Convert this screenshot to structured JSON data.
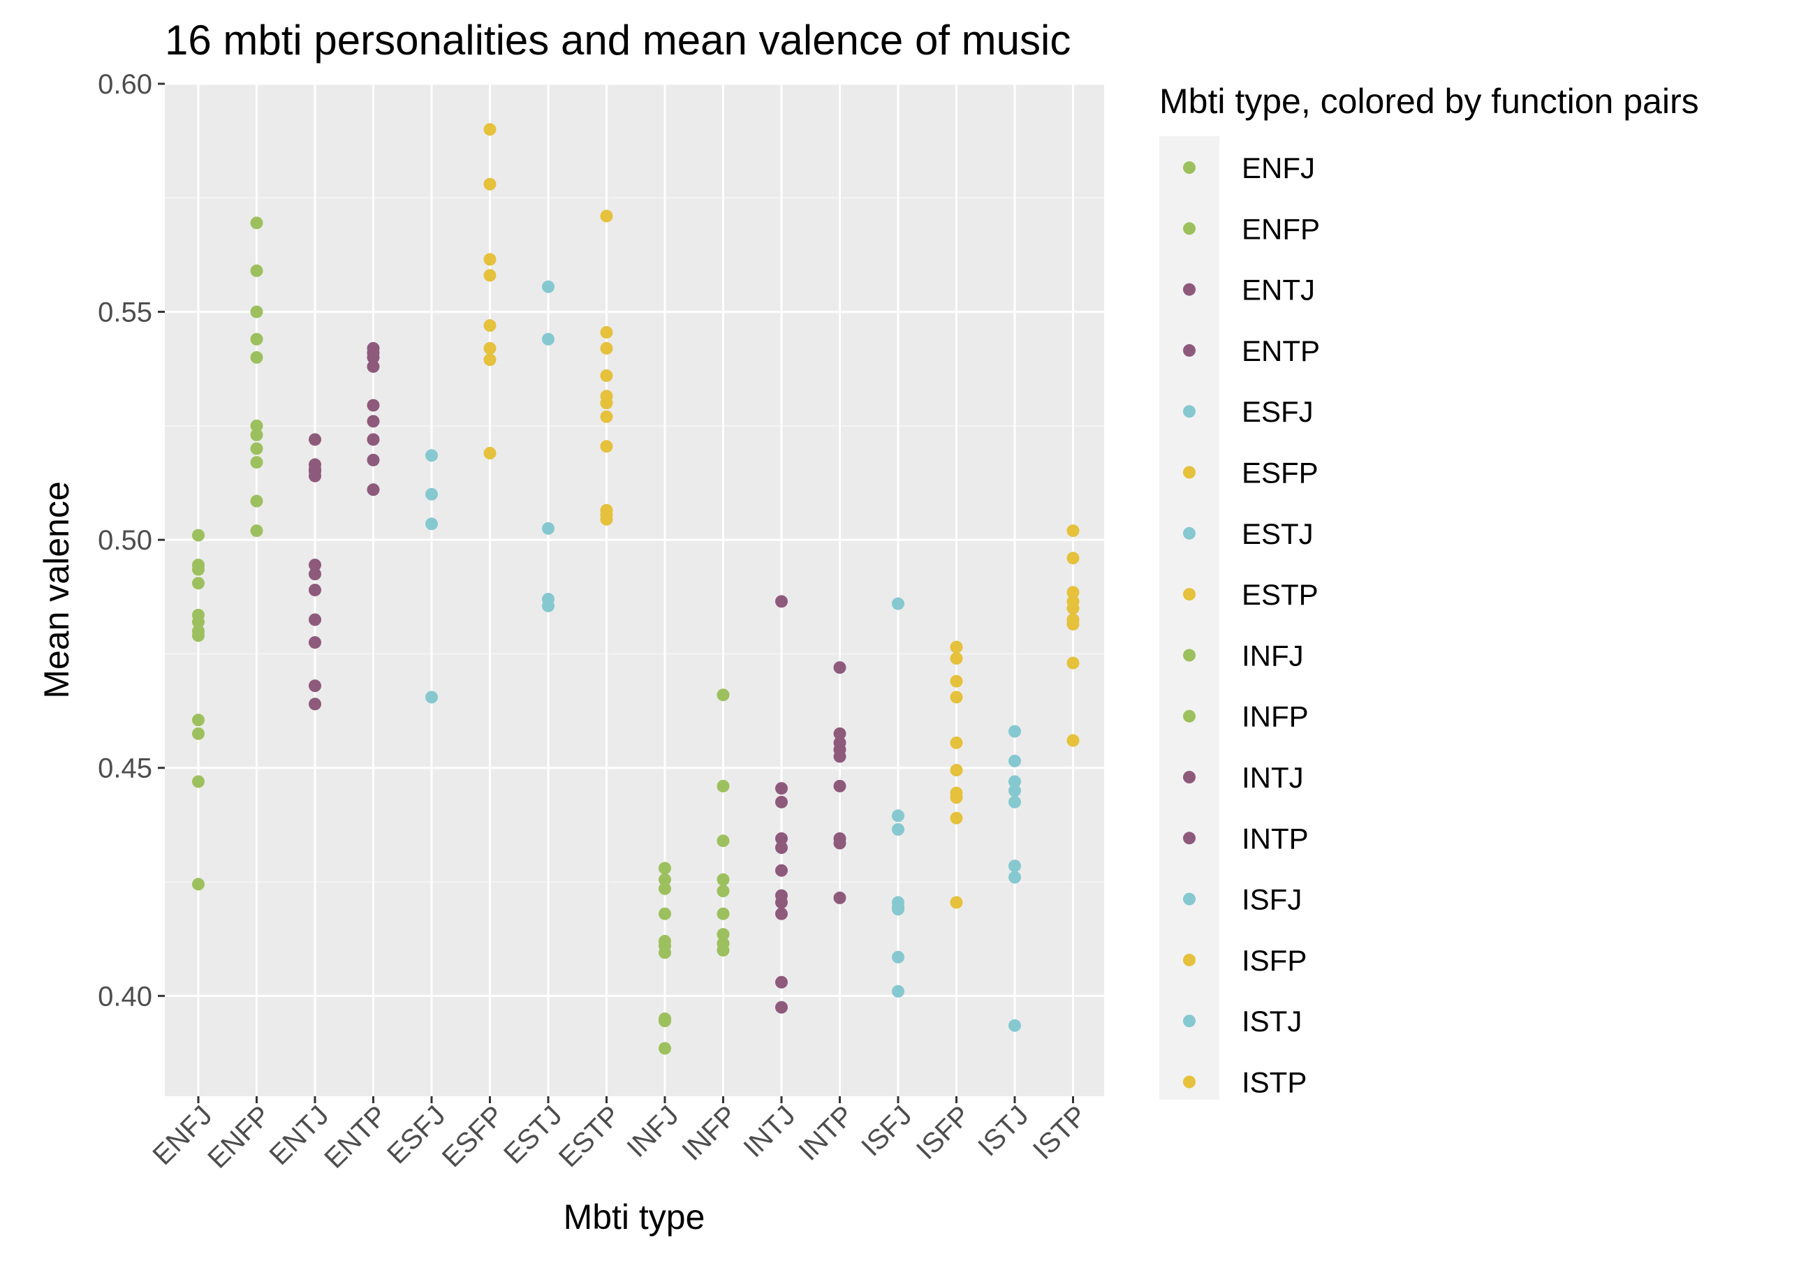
{
  "chart_data": {
    "type": "scatter",
    "title": "16 mbti personalities and mean valence of music",
    "xlabel": "Mbti type",
    "ylabel": "Mean valence",
    "categories": [
      "ENFJ",
      "ENFP",
      "ENTJ",
      "ENTP",
      "ESFJ",
      "ESFP",
      "ESTJ",
      "ESTP",
      "INFJ",
      "INFP",
      "INTJ",
      "INTP",
      "ISFJ",
      "ISFP",
      "ISTJ",
      "ISTP"
    ],
    "ylim": [
      0.378,
      0.6
    ],
    "yticks": [
      "0.40",
      "0.45",
      "0.50",
      "0.55",
      "0.60"
    ],
    "grid": true,
    "legend_title": "Mbti type, colored by function pairs",
    "legend_position": "right",
    "colors": {
      "NF": "#9dc05e",
      "NT": "#8e5a7c",
      "SJ": "#86c8d0",
      "SP": "#e5c13c"
    },
    "series": [
      {
        "name": "ENFJ",
        "group": "NF",
        "values": [
          0.501,
          0.4945,
          0.4935,
          0.4905,
          0.4835,
          0.482,
          0.48,
          0.479,
          0.4605,
          0.4575,
          0.447,
          0.4245
        ]
      },
      {
        "name": "ENFP",
        "group": "NF",
        "values": [
          0.5695,
          0.559,
          0.55,
          0.544,
          0.54,
          0.525,
          0.523,
          0.52,
          0.517,
          0.5085,
          0.502
        ]
      },
      {
        "name": "ENTJ",
        "group": "NT",
        "values": [
          0.522,
          0.5165,
          0.5155,
          0.515,
          0.514,
          0.4945,
          0.4925,
          0.489,
          0.4825,
          0.4775,
          0.468,
          0.464
        ]
      },
      {
        "name": "ENTP",
        "group": "NT",
        "values": [
          0.542,
          0.541,
          0.54,
          0.538,
          0.5295,
          0.526,
          0.522,
          0.5175,
          0.511
        ]
      },
      {
        "name": "ESFJ",
        "group": "SJ",
        "values": [
          0.5185,
          0.51,
          0.5035,
          0.4655
        ]
      },
      {
        "name": "ESFP",
        "group": "SP",
        "values": [
          0.59,
          0.578,
          0.5615,
          0.558,
          0.547,
          0.542,
          0.5395,
          0.519
        ]
      },
      {
        "name": "ESTJ",
        "group": "SJ",
        "values": [
          0.5555,
          0.544,
          0.5025,
          0.487,
          0.4855
        ]
      },
      {
        "name": "ESTP",
        "group": "SP",
        "values": [
          0.571,
          0.5455,
          0.542,
          0.536,
          0.5315,
          0.53,
          0.527,
          0.5205,
          0.5065,
          0.5055,
          0.5045
        ]
      },
      {
        "name": "INFJ",
        "group": "NF",
        "values": [
          0.428,
          0.4255,
          0.4235,
          0.418,
          0.412,
          0.411,
          0.4095,
          0.395,
          0.3945,
          0.3885
        ]
      },
      {
        "name": "INFP",
        "group": "NF",
        "values": [
          0.466,
          0.446,
          0.434,
          0.4255,
          0.423,
          0.418,
          0.4135,
          0.4115,
          0.41
        ]
      },
      {
        "name": "INTJ",
        "group": "NT",
        "values": [
          0.4865,
          0.4455,
          0.4425,
          0.4345,
          0.4325,
          0.4275,
          0.422,
          0.4205,
          0.418,
          0.403,
          0.3975
        ]
      },
      {
        "name": "INTP",
        "group": "NT",
        "values": [
          0.472,
          0.4575,
          0.4555,
          0.454,
          0.4525,
          0.446,
          0.4345,
          0.4335,
          0.4215
        ]
      },
      {
        "name": "ISFJ",
        "group": "SJ",
        "values": [
          0.486,
          0.4395,
          0.4365,
          0.4205,
          0.4195,
          0.419,
          0.4085,
          0.401
        ]
      },
      {
        "name": "ISFP",
        "group": "SP",
        "values": [
          0.4765,
          0.474,
          0.469,
          0.4655,
          0.4555,
          0.4495,
          0.4445,
          0.4435,
          0.439,
          0.4205
        ]
      },
      {
        "name": "ISTJ",
        "group": "SJ",
        "values": [
          0.458,
          0.4515,
          0.447,
          0.445,
          0.4425,
          0.4285,
          0.426,
          0.3935
        ]
      },
      {
        "name": "ISTP",
        "group": "SP",
        "values": [
          0.502,
          0.496,
          0.4885,
          0.4865,
          0.485,
          0.4825,
          0.4815,
          0.473,
          0.456
        ]
      }
    ]
  }
}
